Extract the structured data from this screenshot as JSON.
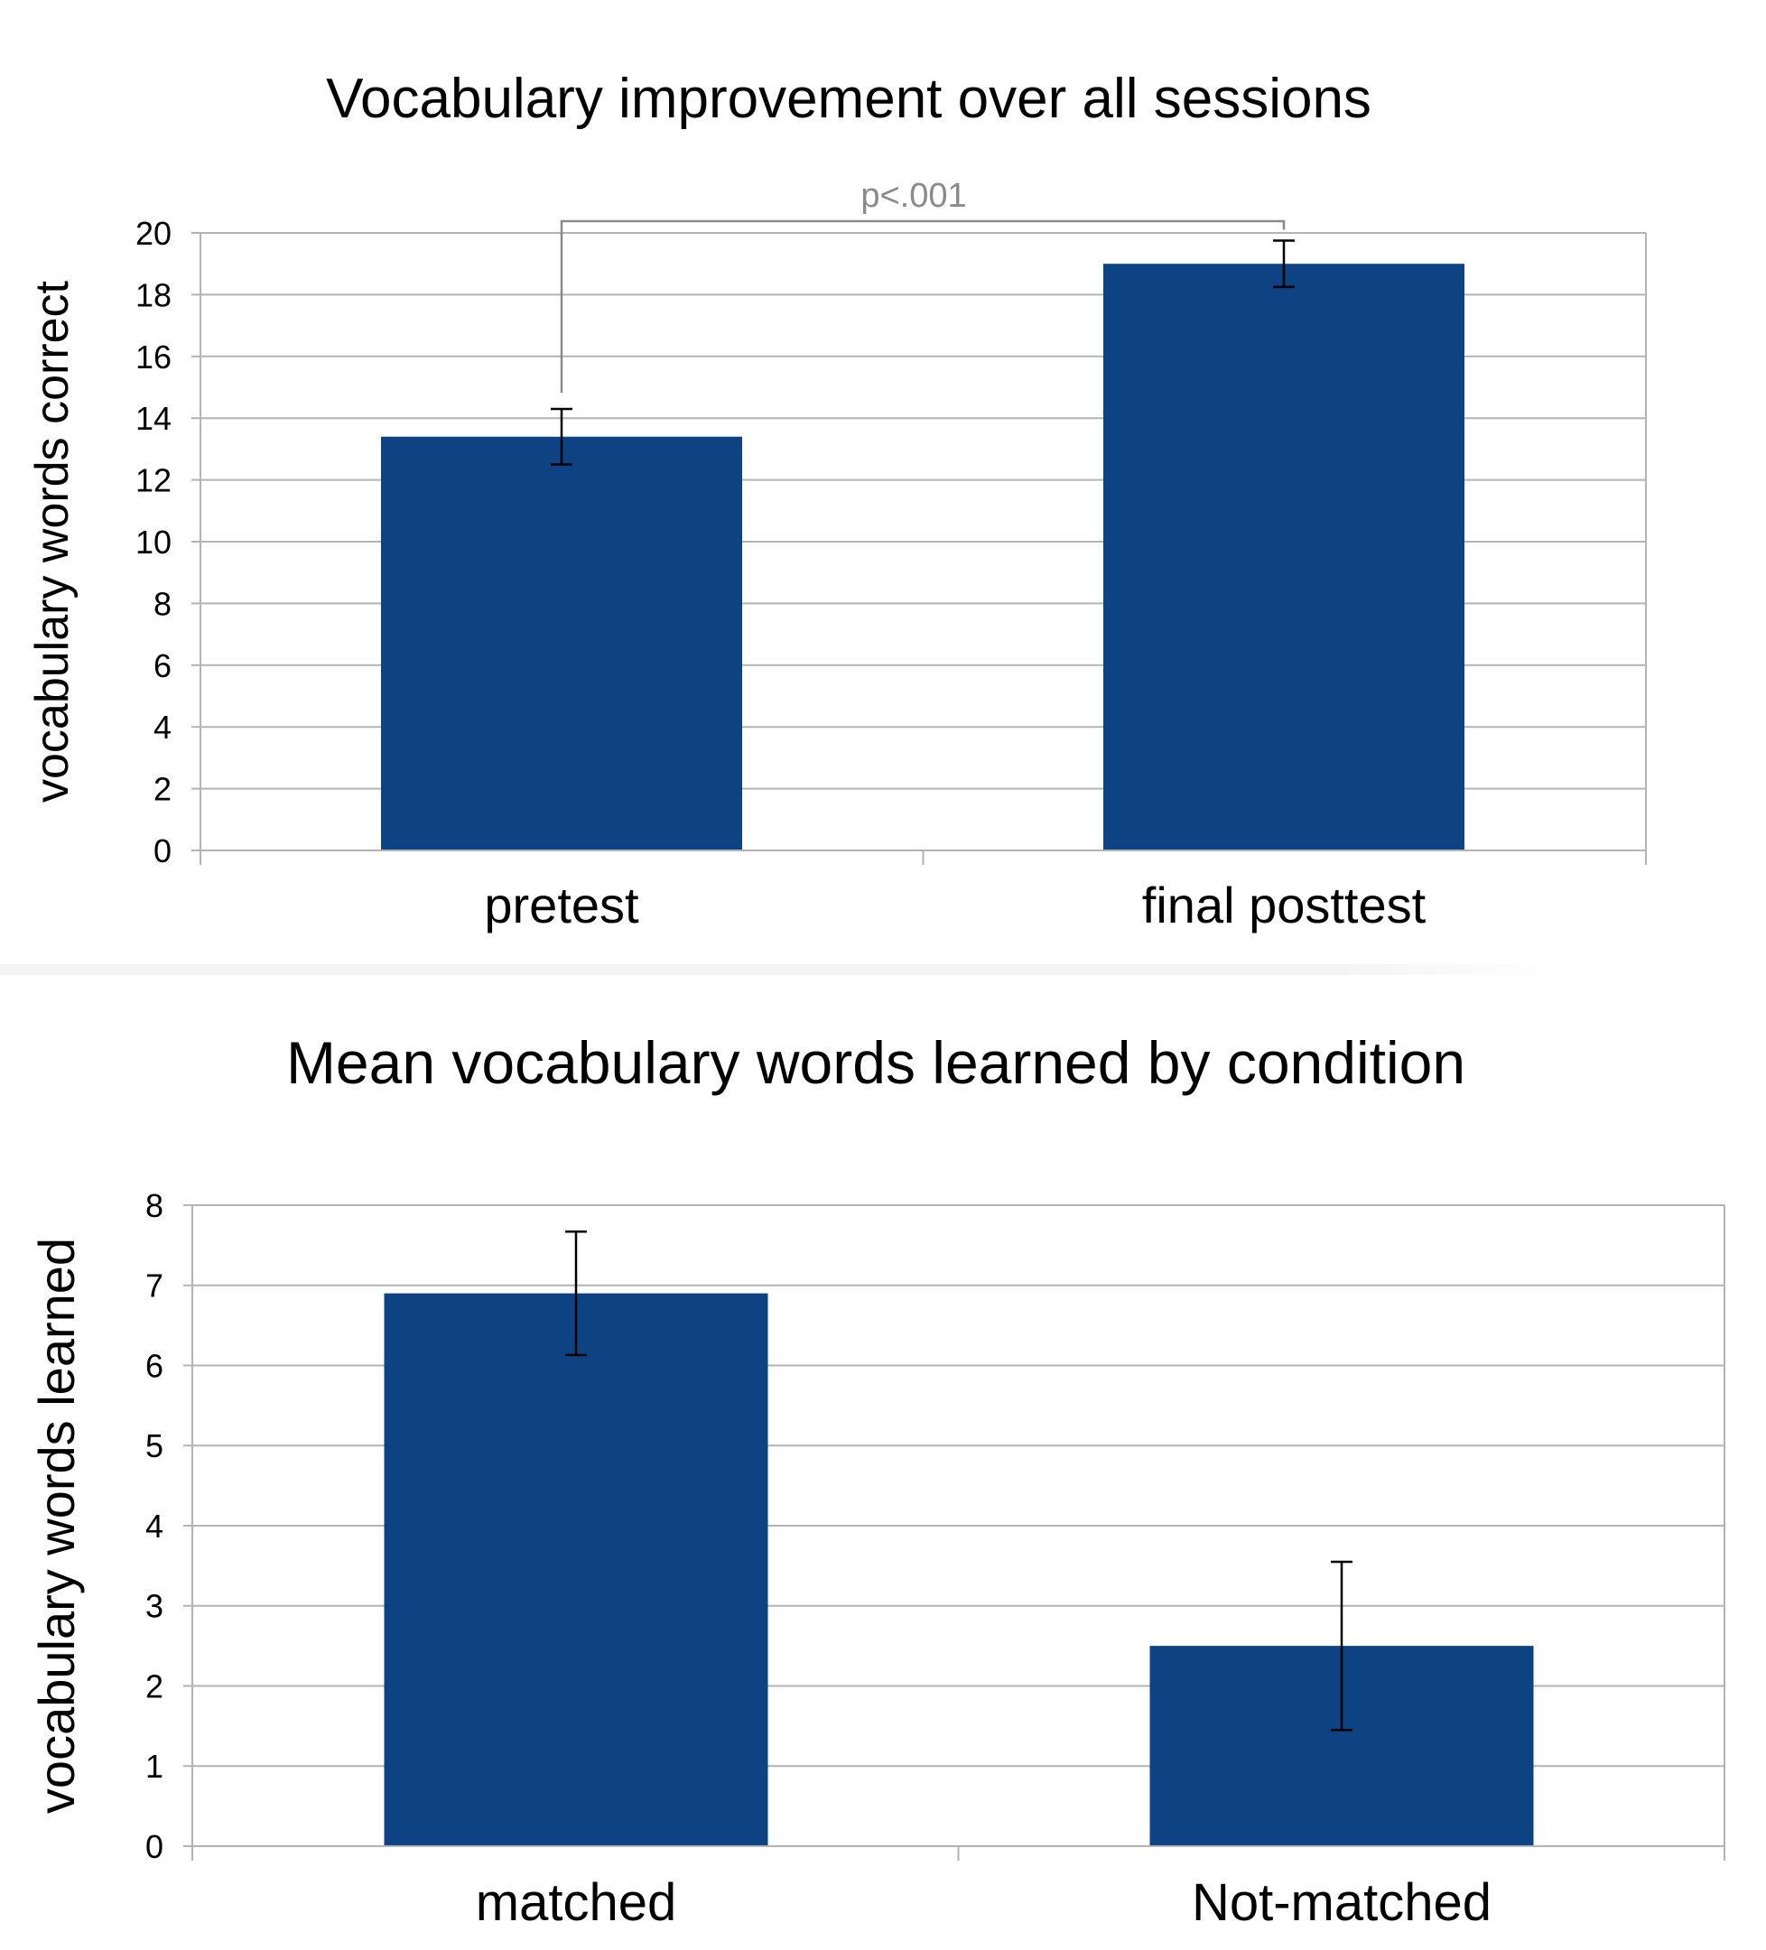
{
  "colors": {
    "bar": "#0e4383",
    "grid": "#b3b3b3",
    "axis": "#b3b3b3",
    "text": "#000000",
    "annotation": "#8a8a8a"
  },
  "chart_data": [
    {
      "type": "bar",
      "title": "Vocabulary improvement over all sessions",
      "ylabel": "vocabulary words correct",
      "xlabel": "",
      "categories": [
        "pretest",
        "final posttest"
      ],
      "values": [
        13.4,
        19.0
      ],
      "error_bars": [
        0.9,
        0.75
      ],
      "ylim": [
        0,
        20
      ],
      "yticks": [
        0,
        2,
        4,
        6,
        8,
        10,
        12,
        14,
        16,
        18,
        20
      ],
      "grid": true,
      "legend": "none",
      "annotation": {
        "text": "p<.001",
        "between": [
          "pretest",
          "final posttest"
        ]
      }
    },
    {
      "type": "bar",
      "title": "Mean vocabulary words learned by condition",
      "ylabel": "vocabulary words learned",
      "xlabel": "",
      "categories": [
        "matched",
        "Not-matched"
      ],
      "values": [
        6.9,
        2.5
      ],
      "error_bars": [
        0.77,
        1.05
      ],
      "ylim": [
        0,
        8
      ],
      "yticks": [
        0,
        1,
        2,
        3,
        4,
        5,
        6,
        7,
        8
      ],
      "grid": true,
      "legend": "none"
    }
  ]
}
